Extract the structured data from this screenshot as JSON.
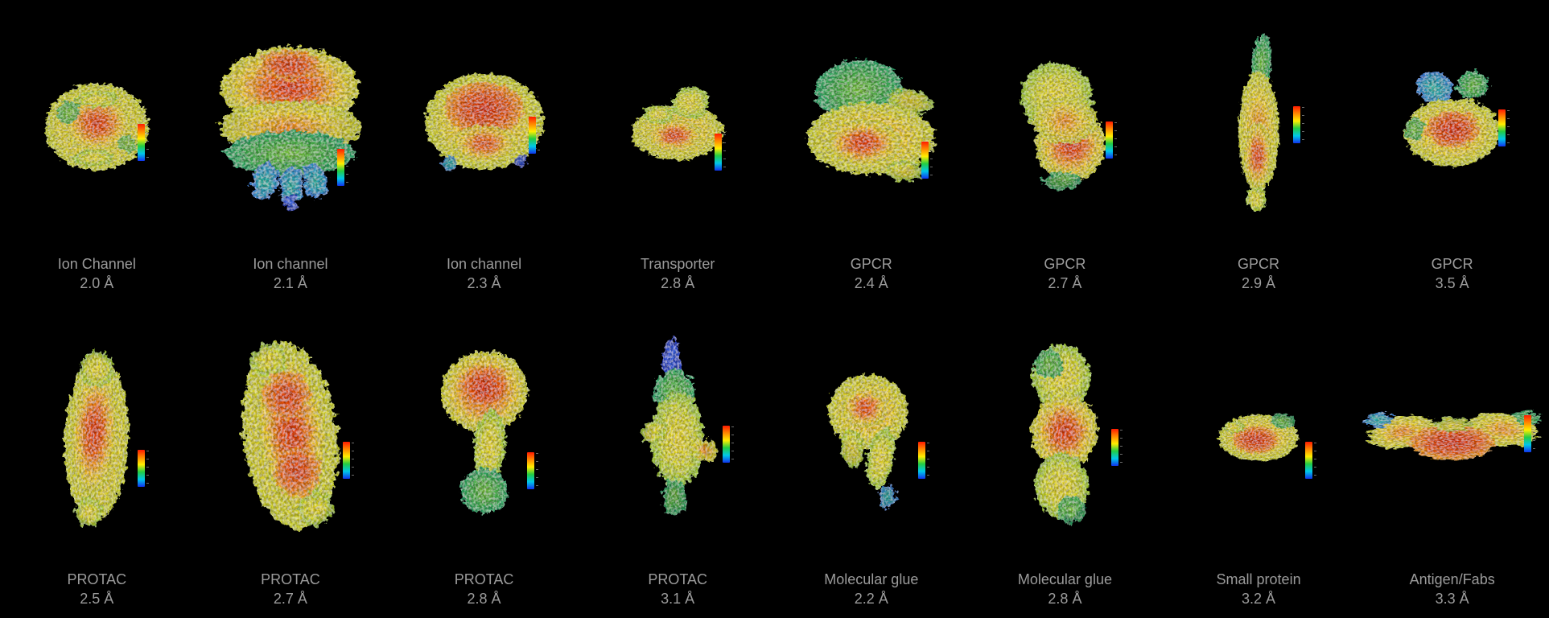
{
  "background": "#000000",
  "text_color": "#9b9b9b",
  "colorbar": {
    "description": "local-resolution rainbow scale",
    "colors": [
      "#ff1a00",
      "#ff8800",
      "#ffee00",
      "#22cc44",
      "#00c8e8",
      "#1133ee"
    ]
  },
  "rows": [
    {
      "items": [
        {
          "label": "Ion Channel",
          "resolution": "2.0 Å"
        },
        {
          "label": "Ion channel",
          "resolution": "2.1 Å"
        },
        {
          "label": "Ion channel",
          "resolution": "2.3 Å"
        },
        {
          "label": "Transporter",
          "resolution": "2.8 Å"
        },
        {
          "label": "GPCR",
          "resolution": "2.4 Å"
        },
        {
          "label": "GPCR",
          "resolution": "2.7 Å"
        },
        {
          "label": "GPCR",
          "resolution": "2.9 Å"
        },
        {
          "label": "GPCR",
          "resolution": "3.5 Å"
        }
      ]
    },
    {
      "items": [
        {
          "label": "PROTAC",
          "resolution": "2.5 Å"
        },
        {
          "label": "PROTAC",
          "resolution": "2.7 Å"
        },
        {
          "label": "PROTAC",
          "resolution": "2.8 Å"
        },
        {
          "label": "PROTAC",
          "resolution": "3.1 Å"
        },
        {
          "label": "Molecular glue",
          "resolution": "2.2 Å"
        },
        {
          "label": "Molecular glue",
          "resolution": "2.8 Å"
        },
        {
          "label": "Small protein",
          "resolution": "3.2 Å"
        },
        {
          "label": "Antigen/Fabs",
          "resolution": "3.3 Å"
        }
      ]
    }
  ]
}
